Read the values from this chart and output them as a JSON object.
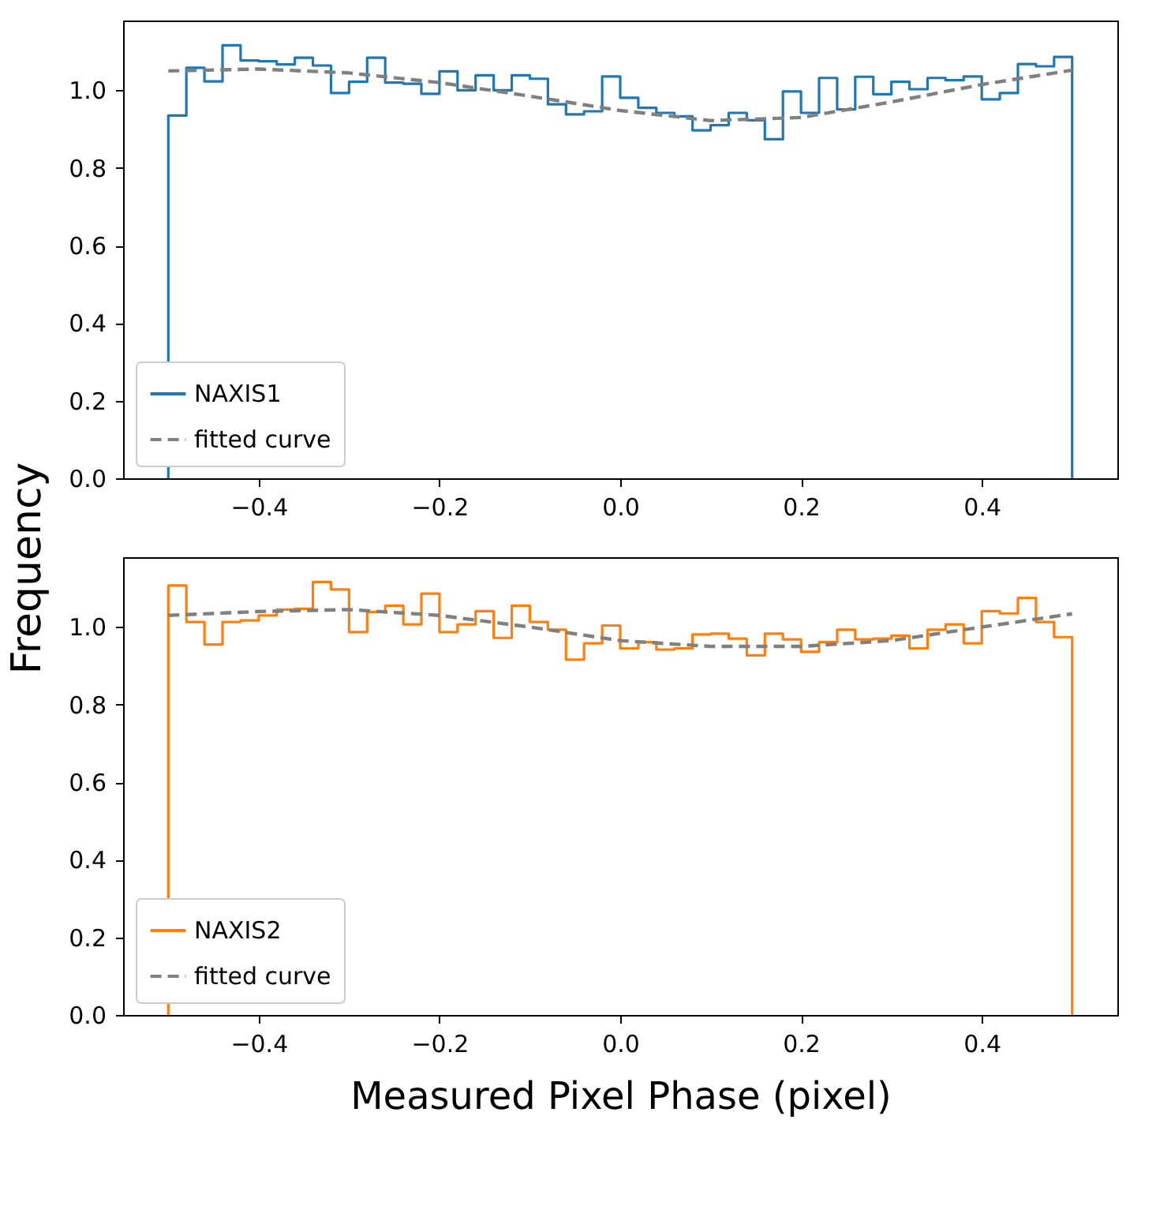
{
  "chart_data": [
    {
      "type": "histogram",
      "ylabel": "Frequency",
      "legend": "bottom left",
      "grid": false,
      "xlim": [
        -0.55,
        0.55
      ],
      "ylim": [
        0,
        1.18
      ],
      "xticks": [
        {
          "value": -0.4,
          "label": "−0.4"
        },
        {
          "value": -0.2,
          "label": "−0.2"
        },
        {
          "value": 0,
          "label": "0.0"
        },
        {
          "value": 0.2,
          "label": "0.2"
        },
        {
          "value": 0.4,
          "label": "0.4"
        }
      ],
      "yticks": [
        {
          "value": 0,
          "label": "0.0"
        },
        {
          "value": 0.2,
          "label": "0.2"
        },
        {
          "value": 0.4,
          "label": "0.4"
        },
        {
          "value": 0.6,
          "label": "0.6"
        },
        {
          "value": 0.8,
          "label": "0.8"
        },
        {
          "value": 1.0,
          "label": "1.0"
        }
      ],
      "bins": [
        -0.5,
        -0.48,
        -0.46,
        -0.44,
        -0.42,
        -0.4,
        -0.38,
        -0.36,
        -0.34,
        -0.32,
        -0.3,
        -0.28,
        -0.26,
        -0.24,
        -0.22,
        -0.2,
        -0.18,
        -0.16,
        -0.14,
        -0.12,
        -0.1,
        -0.08,
        -0.06,
        -0.04,
        -0.02,
        0,
        0.02,
        0.04,
        0.06,
        0.08,
        0.1,
        0.12,
        0.14,
        0.16,
        0.18,
        0.2,
        0.22,
        0.24,
        0.26,
        0.28,
        0.3,
        0.32,
        0.34,
        0.36,
        0.38,
        0.4,
        0.42,
        0.44,
        0.46,
        0.48,
        0.5
      ],
      "series": [
        {
          "name": "NAXIS1",
          "color": "#1f77b4",
          "values": [
            0.935,
            1.058,
            1.023,
            1.116,
            1.077,
            1.075,
            1.067,
            1.084,
            1.064,
            0.993,
            1.022,
            1.084,
            1.02,
            1.017,
            0.991,
            1.049,
            1.0,
            1.039,
            1.0,
            1.039,
            1.03,
            0.964,
            0.938,
            0.946,
            1.036,
            0.981,
            0.955,
            0.942,
            0.933,
            0.897,
            0.91,
            0.942,
            0.923,
            0.874,
            0.997,
            0.942,
            1.032,
            0.951,
            1.035,
            0.99,
            1.022,
            1.003,
            1.032,
            1.026,
            1.036,
            0.977,
            0.993,
            1.068,
            1.062,
            1.086
          ]
        },
        {
          "name": "fitted curve",
          "type": "line",
          "color": "#808080",
          "line_style": "dashed",
          "x": [
            -0.5,
            -0.4,
            -0.3,
            -0.2,
            -0.1,
            0,
            0.1,
            0.2,
            0.3,
            0.4,
            0.5
          ],
          "values": [
            1.05,
            1.055,
            1.045,
            1.02,
            0.985,
            0.948,
            0.922,
            0.93,
            0.97,
            1.015,
            1.052
          ]
        }
      ]
    },
    {
      "type": "histogram",
      "xlabel": "Measured Pixel Phase (pixel)",
      "legend": "bottom left",
      "grid": false,
      "xlim": [
        -0.55,
        0.55
      ],
      "ylim": [
        0,
        1.18
      ],
      "xticks": [
        {
          "value": -0.4,
          "label": "−0.4"
        },
        {
          "value": -0.2,
          "label": "−0.2"
        },
        {
          "value": 0,
          "label": "0.0"
        },
        {
          "value": 0.2,
          "label": "0.2"
        },
        {
          "value": 0.4,
          "label": "0.4"
        }
      ],
      "yticks": [
        {
          "value": 0,
          "label": "0.0"
        },
        {
          "value": 0.2,
          "label": "0.2"
        },
        {
          "value": 0.4,
          "label": "0.4"
        },
        {
          "value": 0.6,
          "label": "0.6"
        },
        {
          "value": 0.8,
          "label": "0.8"
        },
        {
          "value": 1.0,
          "label": "1.0"
        }
      ],
      "bins": [
        -0.5,
        -0.48,
        -0.46,
        -0.44,
        -0.42,
        -0.4,
        -0.38,
        -0.36,
        -0.34,
        -0.32,
        -0.3,
        -0.28,
        -0.26,
        -0.24,
        -0.22,
        -0.2,
        -0.18,
        -0.16,
        -0.14,
        -0.12,
        -0.1,
        -0.08,
        -0.06,
        -0.04,
        -0.02,
        0,
        0.02,
        0.04,
        0.06,
        0.08,
        0.1,
        0.12,
        0.14,
        0.16,
        0.18,
        0.2,
        0.22,
        0.24,
        0.26,
        0.28,
        0.3,
        0.32,
        0.34,
        0.36,
        0.38,
        0.4,
        0.42,
        0.44,
        0.46,
        0.48,
        0.5
      ],
      "series": [
        {
          "name": "NAXIS2",
          "color": "#ff7f0e",
          "values": [
            1.107,
            1.013,
            0.955,
            1.013,
            1.017,
            1.03,
            1.045,
            1.047,
            1.116,
            1.097,
            0.987,
            1.039,
            1.055,
            1.007,
            1.086,
            0.987,
            1.007,
            1.041,
            0.972,
            1.055,
            1.013,
            0.993,
            0.916,
            0.958,
            1.004,
            0.945,
            0.961,
            0.942,
            0.945,
            0.981,
            0.983,
            0.97,
            0.927,
            0.983,
            0.968,
            0.936,
            0.961,
            0.993,
            0.968,
            0.97,
            0.978,
            0.945,
            0.993,
            1.007,
            0.958,
            1.041,
            1.035,
            1.075,
            1.013,
            0.974
          ]
        },
        {
          "name": "fitted curve",
          "type": "line",
          "color": "#808080",
          "line_style": "dashed",
          "x": [
            -0.5,
            -0.4,
            -0.3,
            -0.2,
            -0.1,
            0,
            0.1,
            0.2,
            0.3,
            0.4,
            0.5
          ],
          "values": [
            1.03,
            1.04,
            1.045,
            1.03,
            1.0,
            0.965,
            0.95,
            0.95,
            0.965,
            1.0,
            1.034
          ]
        }
      ]
    }
  ]
}
